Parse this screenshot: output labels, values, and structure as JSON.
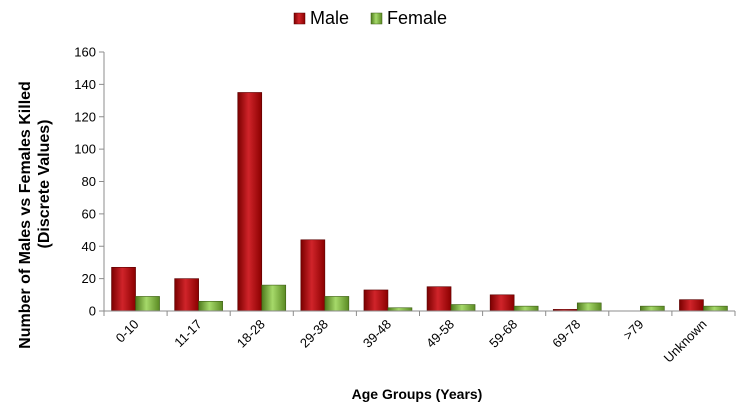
{
  "colors": {
    "male_dark": "#8b0000",
    "male_light": "#d0242a",
    "female_dark": "#4e7a1c",
    "female_light": "#a6d96a",
    "axis": "#8c8c8c"
  },
  "chart_data": {
    "type": "bar",
    "categories": [
      "0-10",
      "11-17",
      "18-28",
      "29-38",
      "39-48",
      "49-58",
      "59-68",
      "69-78",
      ">79",
      "Unknown"
    ],
    "series": [
      {
        "name": "Male",
        "values": [
          27,
          20,
          135,
          44,
          13,
          15,
          10,
          1,
          0,
          7
        ]
      },
      {
        "name": "Female",
        "values": [
          9,
          6,
          16,
          9,
          2,
          4,
          3,
          5,
          3,
          3
        ]
      }
    ],
    "title": "",
    "xlabel": "Age Groups (Years)",
    "ylabel_line1": "Number of Males vs Females Killed",
    "ylabel_line2": "(Discrete Values)",
    "ylim": [
      0,
      160
    ],
    "yticks": [
      "0",
      "20",
      "40",
      "60",
      "80",
      "100",
      "120",
      "140",
      "160"
    ],
    "grid": false,
    "legend_position": "top-center"
  }
}
